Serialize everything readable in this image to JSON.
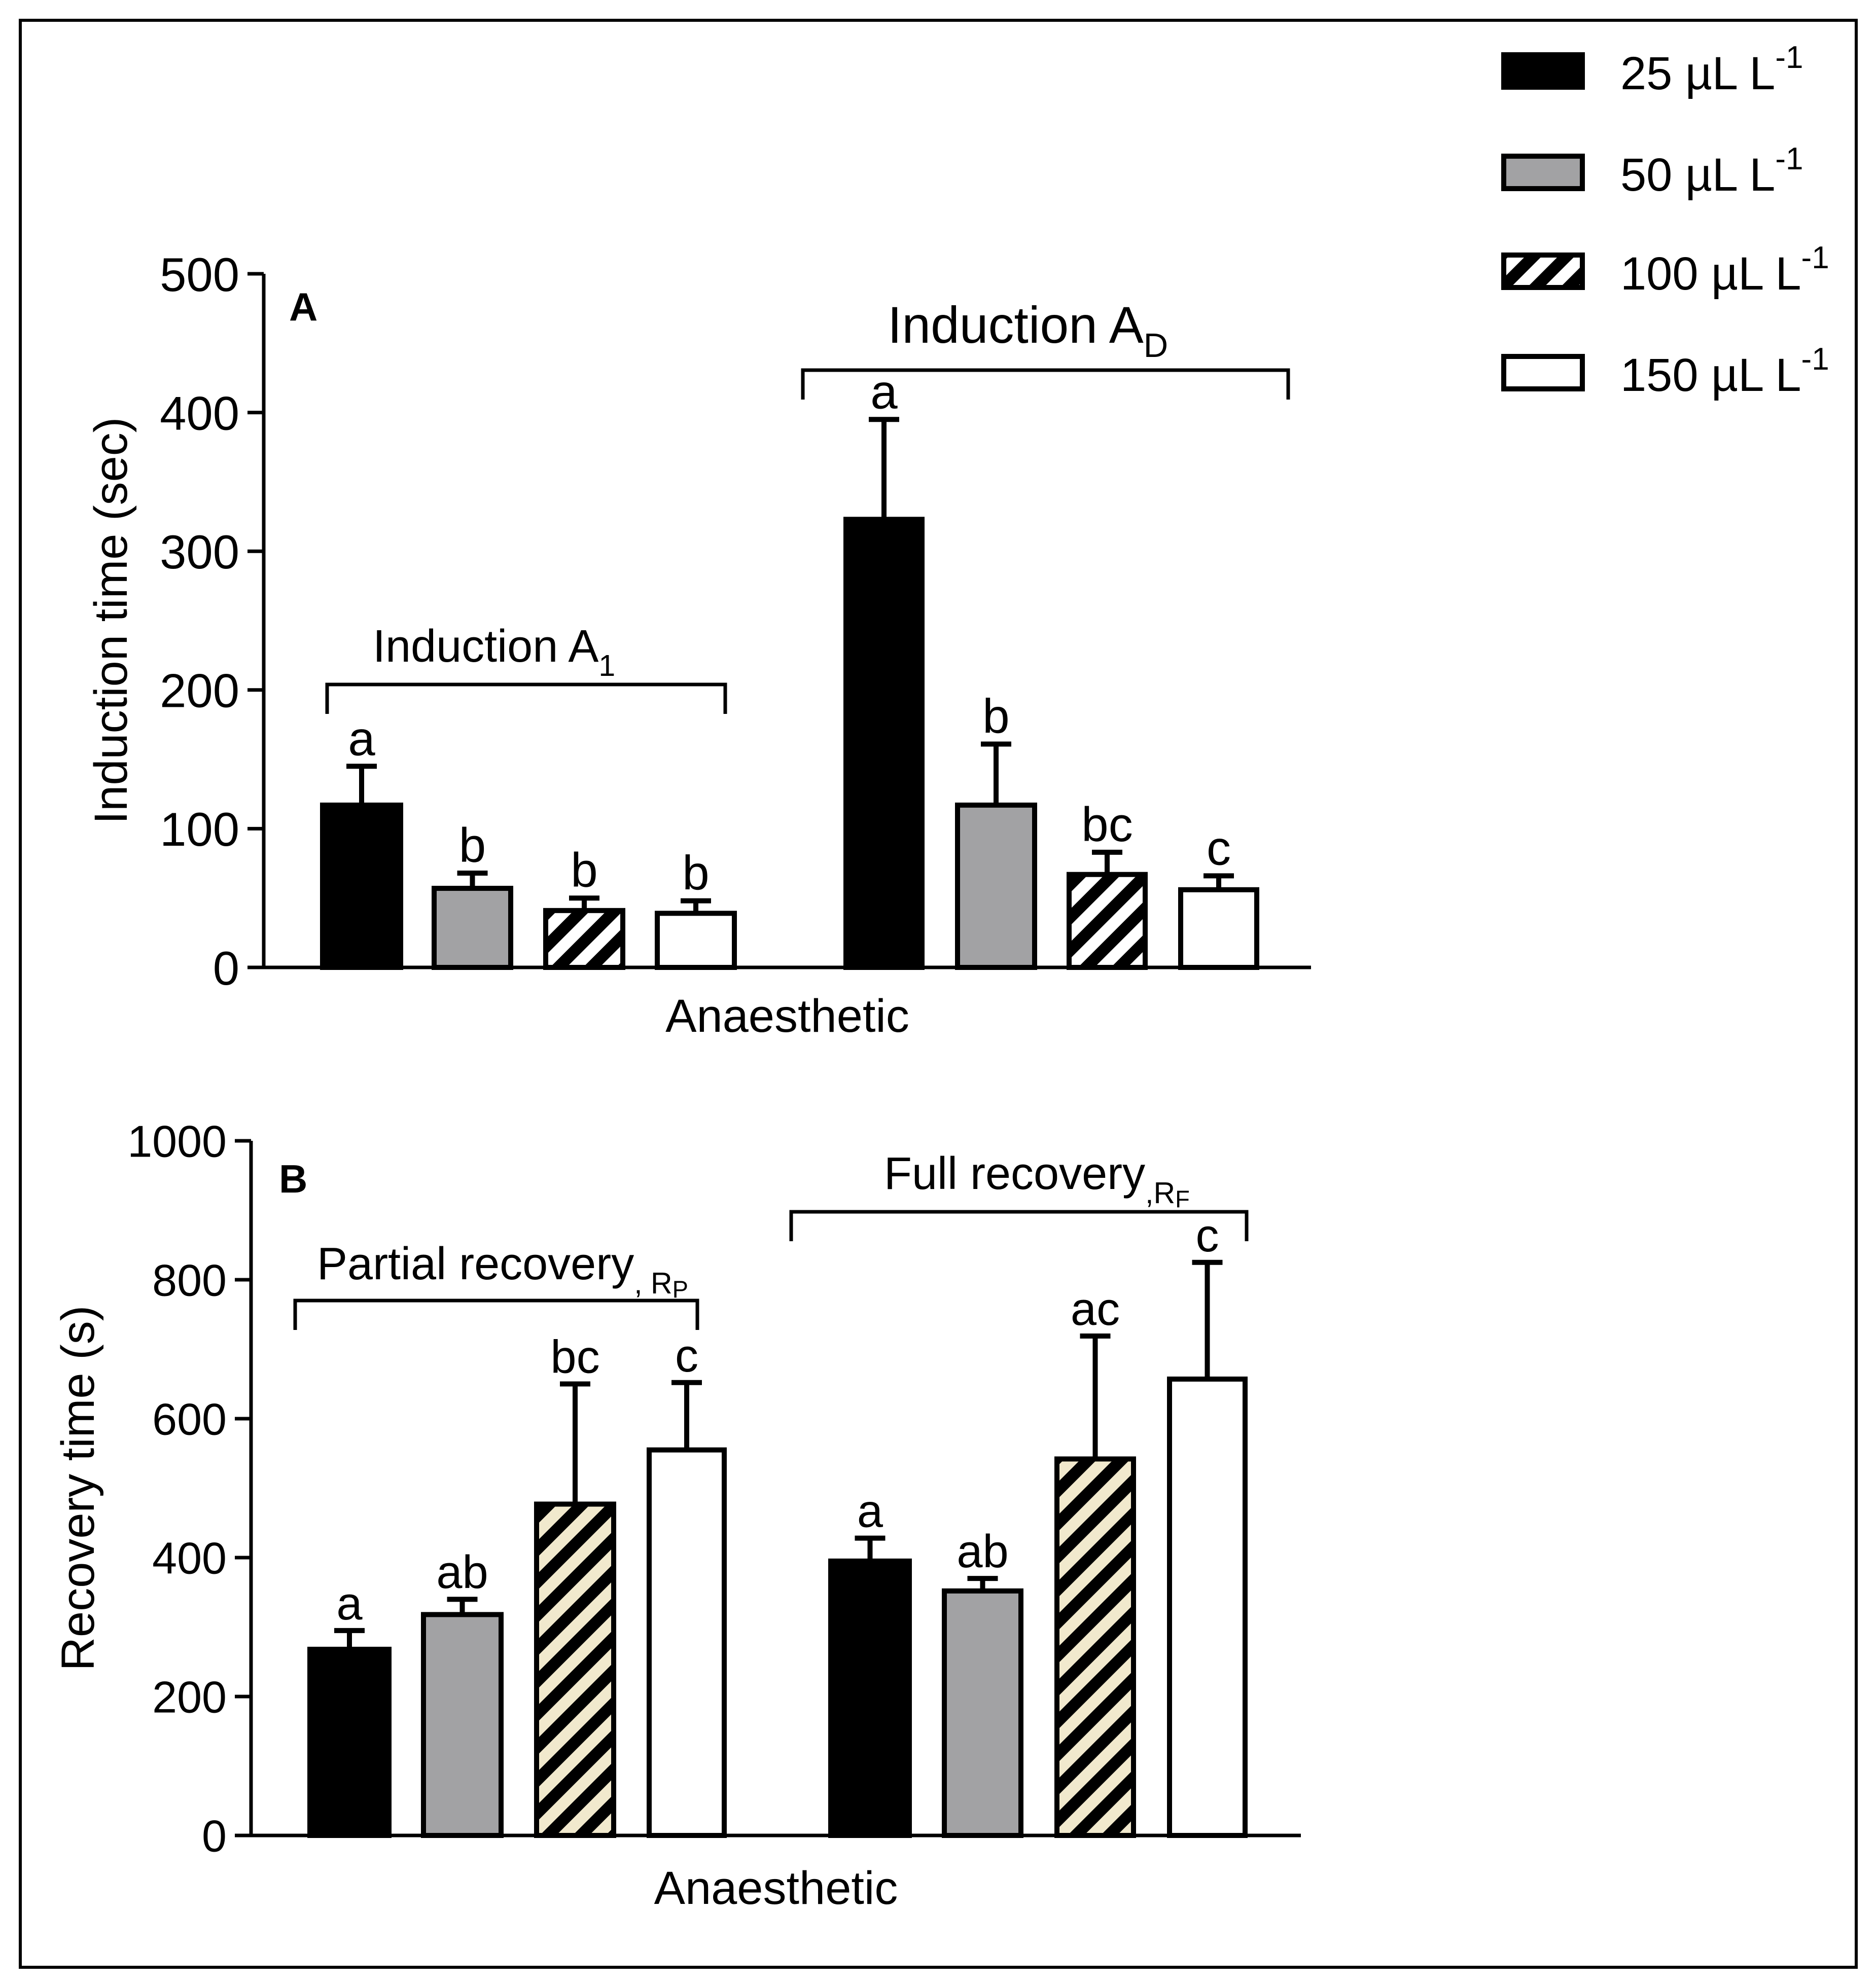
{
  "legend": {
    "placement": "top-right",
    "items": [
      {
        "label": "25 µL L",
        "sup": "-1",
        "fill": "black"
      },
      {
        "label": "50  µL L",
        "sup": "-1",
        "fill": "gray"
      },
      {
        "label": "100 µL L",
        "sup": "-1",
        "fill": "hatch"
      },
      {
        "label": "150 µL L",
        "sup": "-1",
        "fill": "white"
      }
    ]
  },
  "colors": {
    "black": "#000000",
    "gray": "#a2a2a4",
    "white": "#ffffff",
    "hatch_stripe_a": "#000000",
    "hatch_bg_a": "#ffffff",
    "hatch_stripe_b": "#000000",
    "hatch_bg_b": "#f1e9cd"
  },
  "chart_data": [
    {
      "type": "bar",
      "panel_label": "A",
      "ylabel": "Induction time (sec)",
      "xlabel": "Anaesthetic",
      "ylim": [
        0,
        500
      ],
      "yticks": [
        0,
        100,
        200,
        300,
        400,
        500
      ],
      "groups": [
        {
          "label": "Induction A",
          "sub": "1",
          "bars": [
            {
              "series": "25 µL L-1",
              "value": 117,
              "error": 28,
              "letter": "a"
            },
            {
              "series": "50 µL L-1",
              "value": 57,
              "error": 11,
              "letter": "b"
            },
            {
              "series": "100 µL L-1",
              "value": 41,
              "error": 9,
              "letter": "b"
            },
            {
              "series": "150 µL L-1",
              "value": 39,
              "error": 9,
              "letter": "b"
            }
          ]
        },
        {
          "label": "Induction A",
          "sub": "D",
          "bars": [
            {
              "series": "25 µL L-1",
              "value": 323,
              "error": 72,
              "letter": "a"
            },
            {
              "series": "50 µL L-1",
              "value": 117,
              "error": 44,
              "letter": "b"
            },
            {
              "series": "100 µL L-1",
              "value": 67,
              "error": 16,
              "letter": "bc"
            },
            {
              "series": "150 µL L-1",
              "value": 56,
              "error": 10,
              "letter": "c"
            }
          ]
        }
      ]
    },
    {
      "type": "bar",
      "panel_label": "B",
      "ylabel": "Recovery time (s)",
      "xlabel": "Anaesthetic",
      "ylim": [
        0,
        1000
      ],
      "yticks": [
        0,
        200,
        400,
        600,
        800,
        1000
      ],
      "groups": [
        {
          "label": "Partial recovery",
          "sub": ", R",
          "subsub": "P",
          "bars": [
            {
              "series": "25 µL L-1",
              "value": 268,
              "error": 27,
              "letter": "a"
            },
            {
              "series": "50 µL L-1",
              "value": 318,
              "error": 22,
              "letter": "ab"
            },
            {
              "series": "100 µL L-1",
              "value": 477,
              "error": 173,
              "letter": "bc"
            },
            {
              "series": "150 µL L-1",
              "value": 555,
              "error": 97,
              "letter": "c"
            }
          ]
        },
        {
          "label": "Full recovery",
          "sub": ",R",
          "subsub": "F",
          "bars": [
            {
              "series": "25 µL L-1",
              "value": 395,
              "error": 33,
              "letter": "a"
            },
            {
              "series": "50 µL L-1",
              "value": 352,
              "error": 18,
              "letter": "ab"
            },
            {
              "series": "100 µL L-1",
              "value": 542,
              "error": 177,
              "letter": "ac"
            },
            {
              "series": "150 µL L-1",
              "value": 657,
              "error": 168,
              "letter": "c"
            }
          ]
        }
      ]
    }
  ]
}
